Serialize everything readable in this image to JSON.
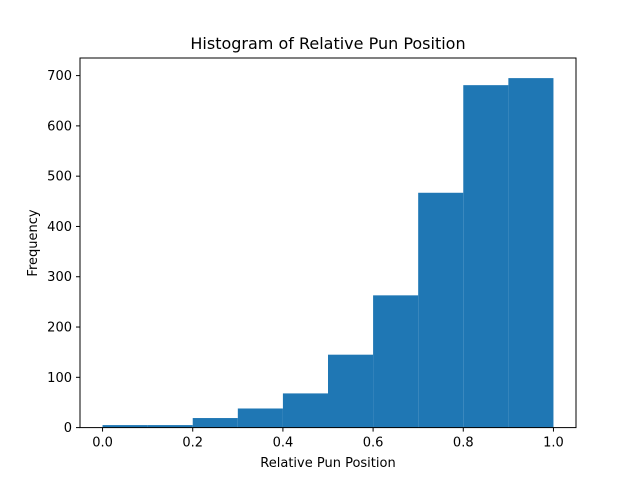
{
  "chart_data": {
    "type": "bar",
    "title": "Histogram of Relative Pun Position",
    "xlabel": "Relative Pun Position",
    "ylabel": "Frequency",
    "xlim": [
      -0.05,
      1.05
    ],
    "ylim": [
      0,
      735
    ],
    "x_ticks": [
      "0.0",
      "0.2",
      "0.4",
      "0.6",
      "0.8",
      "1.0"
    ],
    "y_ticks": [
      "0",
      "100",
      "200",
      "300",
      "400",
      "500",
      "600",
      "700"
    ],
    "bin_edges": [
      0.0,
      0.1,
      0.2,
      0.3,
      0.4,
      0.5,
      0.6,
      0.7,
      0.8,
      0.9,
      1.0
    ],
    "values": [
      5,
      5,
      19,
      38,
      68,
      145,
      263,
      467,
      681,
      695
    ],
    "bar_color": "#1f77b4",
    "grid": false,
    "legend": "none"
  }
}
